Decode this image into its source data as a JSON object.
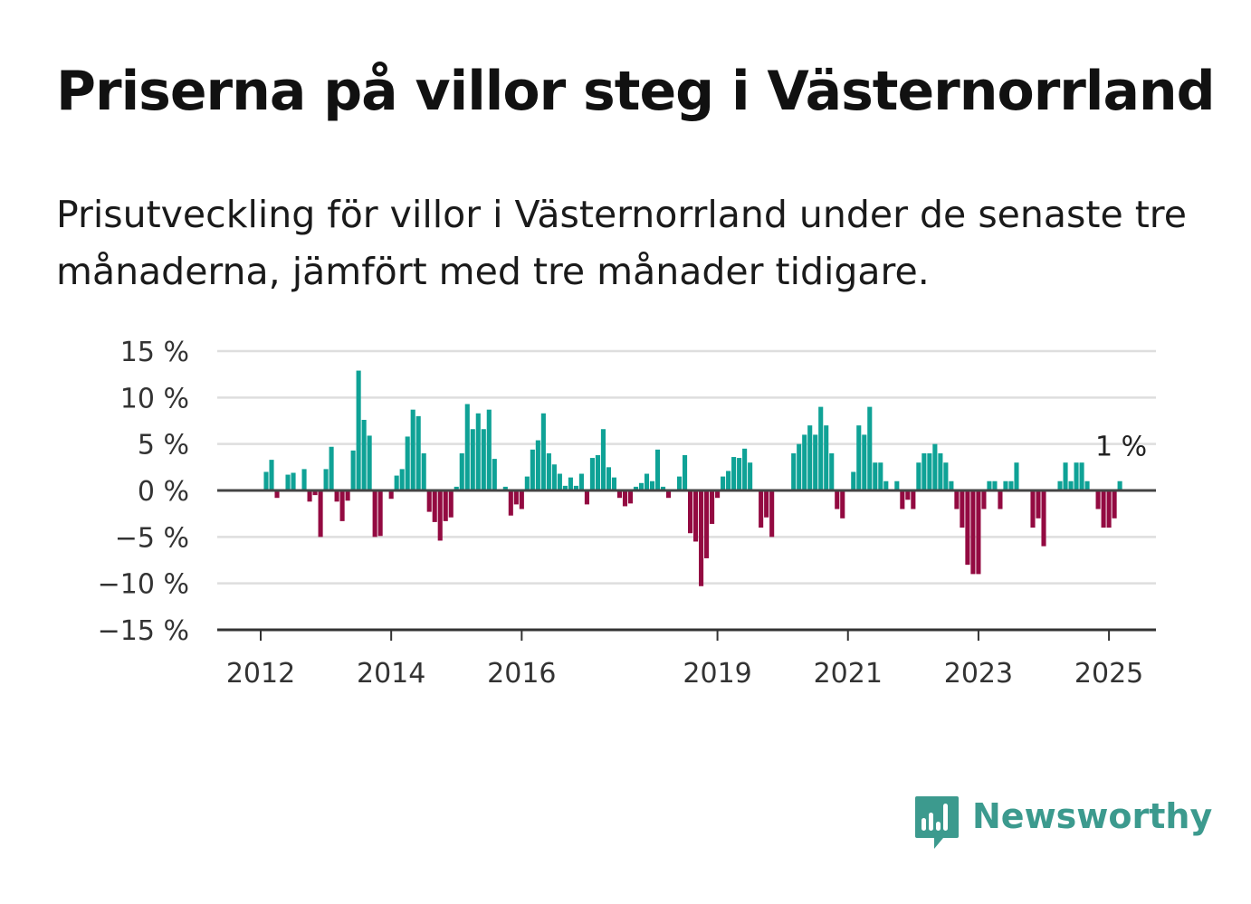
{
  "title": "Priserna på villor steg i Västernorrland",
  "subtitle": "Prisutveckling för villor i Västernorrland under de senaste tre månaderna, jämfört med tre månader tidigare.",
  "brand": {
    "name": "Newsworthy",
    "icon": "newsworthy-bar-chart-logo-icon"
  },
  "colors": {
    "positive": "#0fa296",
    "negative": "#930a41",
    "grid": "#dedede",
    "axis": "#333333",
    "brand": "#3c9a8e"
  },
  "chart_data": {
    "type": "bar",
    "x_unit": "month",
    "start": "2012-01",
    "ylim": [
      -15,
      15
    ],
    "yticks": [
      15,
      10,
      5,
      0,
      -5,
      -10,
      -15
    ],
    "ytick_labels": [
      "15 %",
      "10 %",
      "5 %",
      "0 %",
      "−5 %",
      "−10 %",
      "−15 %"
    ],
    "xticks": [
      "2012",
      "2014",
      "2016",
      "2019",
      "2021",
      "2023",
      "2025"
    ],
    "last_value_label": "1 %",
    "grid": true,
    "legend": "none",
    "values": [
      0,
      2,
      3.3,
      -0.8,
      0,
      1.7,
      1.9,
      0,
      2.3,
      -1.2,
      -0.5,
      -5,
      2.3,
      4.7,
      -1.2,
      -3.3,
      -1.1,
      4.3,
      12.9,
      7.6,
      5.9,
      -5,
      -4.9,
      0,
      -0.9,
      1.6,
      2.3,
      5.8,
      8.7,
      8,
      4,
      -2.3,
      -3.4,
      -5.4,
      -3.3,
      -2.9,
      0.4,
      4,
      9.3,
      6.6,
      8.3,
      6.6,
      8.7,
      3.4,
      0,
      0.4,
      -2.7,
      -1.5,
      -2,
      1.5,
      4.4,
      5.4,
      8.3,
      4,
      2.8,
      1.8,
      0.5,
      1.4,
      0.5,
      1.8,
      -1.5,
      3.5,
      3.8,
      6.6,
      2.5,
      1.4,
      -0.8,
      -1.7,
      -1.4,
      0.4,
      0.8,
      1.8,
      1,
      4.4,
      0.4,
      -0.8,
      0,
      1.5,
      3.8,
      -4.6,
      -5.5,
      -10.3,
      -7.3,
      -3.6,
      -0.8,
      1.5,
      2.1,
      3.6,
      3.5,
      4.5,
      3,
      0,
      -4,
      -2.9,
      -5,
      0,
      0,
      0,
      4,
      5,
      6,
      7,
      6,
      9,
      7,
      4,
      -2,
      -3,
      0,
      2,
      7,
      6,
      9,
      3,
      3,
      1,
      0,
      1,
      -2,
      -1,
      -2,
      3,
      4,
      4,
      5,
      4,
      3,
      1,
      -2,
      -4,
      -8,
      -9,
      -9,
      -2,
      1,
      1,
      -2,
      1,
      1,
      3,
      0,
      0,
      -4,
      -3,
      -6,
      0,
      0,
      1,
      3,
      1,
      3,
      3,
      1,
      0,
      -2,
      -4,
      -4,
      -3,
      1
    ]
  }
}
